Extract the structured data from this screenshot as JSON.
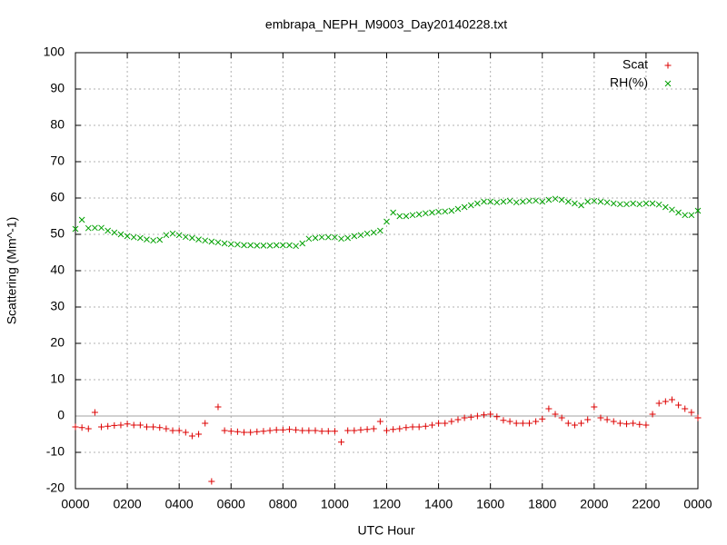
{
  "chart_data": {
    "type": "scatter",
    "title": "embrapa_NEPH_M9003_Day20140228.txt",
    "xlabel": "UTC Hour",
    "ylabel": "Scattering (Mm^-1)",
    "x": [
      0,
      0.25,
      0.5,
      0.75,
      1,
      1.25,
      1.5,
      1.75,
      2,
      2.25,
      2.5,
      2.75,
      3,
      3.25,
      3.5,
      3.75,
      4,
      4.25,
      4.5,
      4.75,
      5,
      5.25,
      5.5,
      5.75,
      6,
      6.25,
      6.5,
      6.75,
      7,
      7.25,
      7.5,
      7.75,
      8,
      8.25,
      8.5,
      8.75,
      9,
      9.25,
      9.5,
      9.75,
      10,
      10.25,
      10.5,
      10.75,
      11,
      11.25,
      11.5,
      11.75,
      12,
      12.25,
      12.5,
      12.75,
      13,
      13.25,
      13.5,
      13.75,
      14,
      14.25,
      14.5,
      14.75,
      15,
      15.25,
      15.5,
      15.75,
      16,
      16.25,
      16.5,
      16.75,
      17,
      17.25,
      17.5,
      17.75,
      18,
      18.25,
      18.5,
      18.75,
      19,
      19.25,
      19.5,
      19.75,
      20,
      20.25,
      20.5,
      20.75,
      21,
      21.25,
      21.5,
      21.75,
      22,
      22.25,
      22.5,
      22.75,
      23,
      23.25,
      23.5,
      23.75,
      24
    ],
    "series": [
      {
        "name": "Scat",
        "color": "#dd0000",
        "marker": "plus",
        "values": [
          -3,
          -3.2,
          -3.5,
          1,
          -3,
          -2.8,
          -2.6,
          -2.5,
          -2.2,
          -2.5,
          -2.5,
          -3,
          -3,
          -3.2,
          -3.5,
          -4,
          -4,
          -4.5,
          -5.5,
          -5,
          -2,
          -18,
          2.5,
          -4,
          -4.2,
          -4.3,
          -4.5,
          -4.5,
          -4.3,
          -4.2,
          -4,
          -3.8,
          -3.8,
          -3.7,
          -3.8,
          -4,
          -4,
          -4,
          -4.2,
          -4.2,
          -4.2,
          -7.2,
          -4,
          -4,
          -3.8,
          -3.7,
          -3.5,
          -1.5,
          -4,
          -3.7,
          -3.5,
          -3.2,
          -3,
          -3,
          -2.8,
          -2.5,
          -2,
          -2,
          -1.5,
          -1,
          -0.5,
          -0.3,
          0,
          0.3,
          0.5,
          -0.2,
          -1.2,
          -1.5,
          -2,
          -2,
          -2,
          -1.5,
          -0.8,
          2,
          0.5,
          -0.5,
          -2,
          -2.5,
          -2,
          -1,
          2.5,
          -0.5,
          -1,
          -1.5,
          -2,
          -2.2,
          -2,
          -2.3,
          -2.5,
          0.5,
          3.5,
          4,
          4.5,
          3,
          2,
          1,
          -0.5
        ]
      },
      {
        "name": "RH(%)",
        "color": "#00a000",
        "marker": "cross",
        "values": [
          51.5,
          54,
          51.7,
          51.8,
          51.8,
          51,
          50.5,
          50,
          49.5,
          49.2,
          49,
          48.6,
          48.3,
          48.5,
          49.8,
          50.2,
          49.8,
          49.3,
          49,
          48.6,
          48.3,
          48,
          47.8,
          47.5,
          47.3,
          47.2,
          47,
          47,
          46.9,
          46.9,
          46.9,
          47,
          47,
          47,
          46.8,
          47.5,
          48.8,
          49,
          49.2,
          49.2,
          49.2,
          48.8,
          49,
          49.5,
          49.8,
          50.2,
          50.5,
          51,
          53.5,
          56,
          55,
          55,
          55.3,
          55.5,
          55.8,
          56,
          56.2,
          56.3,
          56.5,
          57,
          57.5,
          58,
          58.5,
          59,
          59,
          58.8,
          59,
          59.2,
          58.8,
          59,
          59.2,
          59.3,
          59,
          59.5,
          59.8,
          59.5,
          59,
          58.5,
          58,
          59,
          59.2,
          59,
          58.8,
          58.5,
          58.3,
          58.3,
          58.5,
          58.3,
          58.5,
          58.5,
          58.2,
          57.5,
          56.8,
          56,
          55.3,
          55.3,
          56.5
        ]
      }
    ],
    "xlim": [
      0,
      24
    ],
    "xticks": [
      {
        "value": 0,
        "label": "0000"
      },
      {
        "value": 2,
        "label": "0200"
      },
      {
        "value": 4,
        "label": "0400"
      },
      {
        "value": 6,
        "label": "0600"
      },
      {
        "value": 8,
        "label": "0800"
      },
      {
        "value": 10,
        "label": "1000"
      },
      {
        "value": 12,
        "label": "1200"
      },
      {
        "value": 14,
        "label": "1400"
      },
      {
        "value": 16,
        "label": "1600"
      },
      {
        "value": 18,
        "label": "1800"
      },
      {
        "value": 20,
        "label": "2000"
      },
      {
        "value": 22,
        "label": "2200"
      },
      {
        "value": 24,
        "label": "0000"
      }
    ],
    "ylim": [
      -20,
      100
    ],
    "yticks": [
      -20,
      -10,
      0,
      10,
      20,
      30,
      40,
      50,
      60,
      70,
      80,
      90,
      100
    ],
    "grid": true,
    "legend": "top-right"
  }
}
